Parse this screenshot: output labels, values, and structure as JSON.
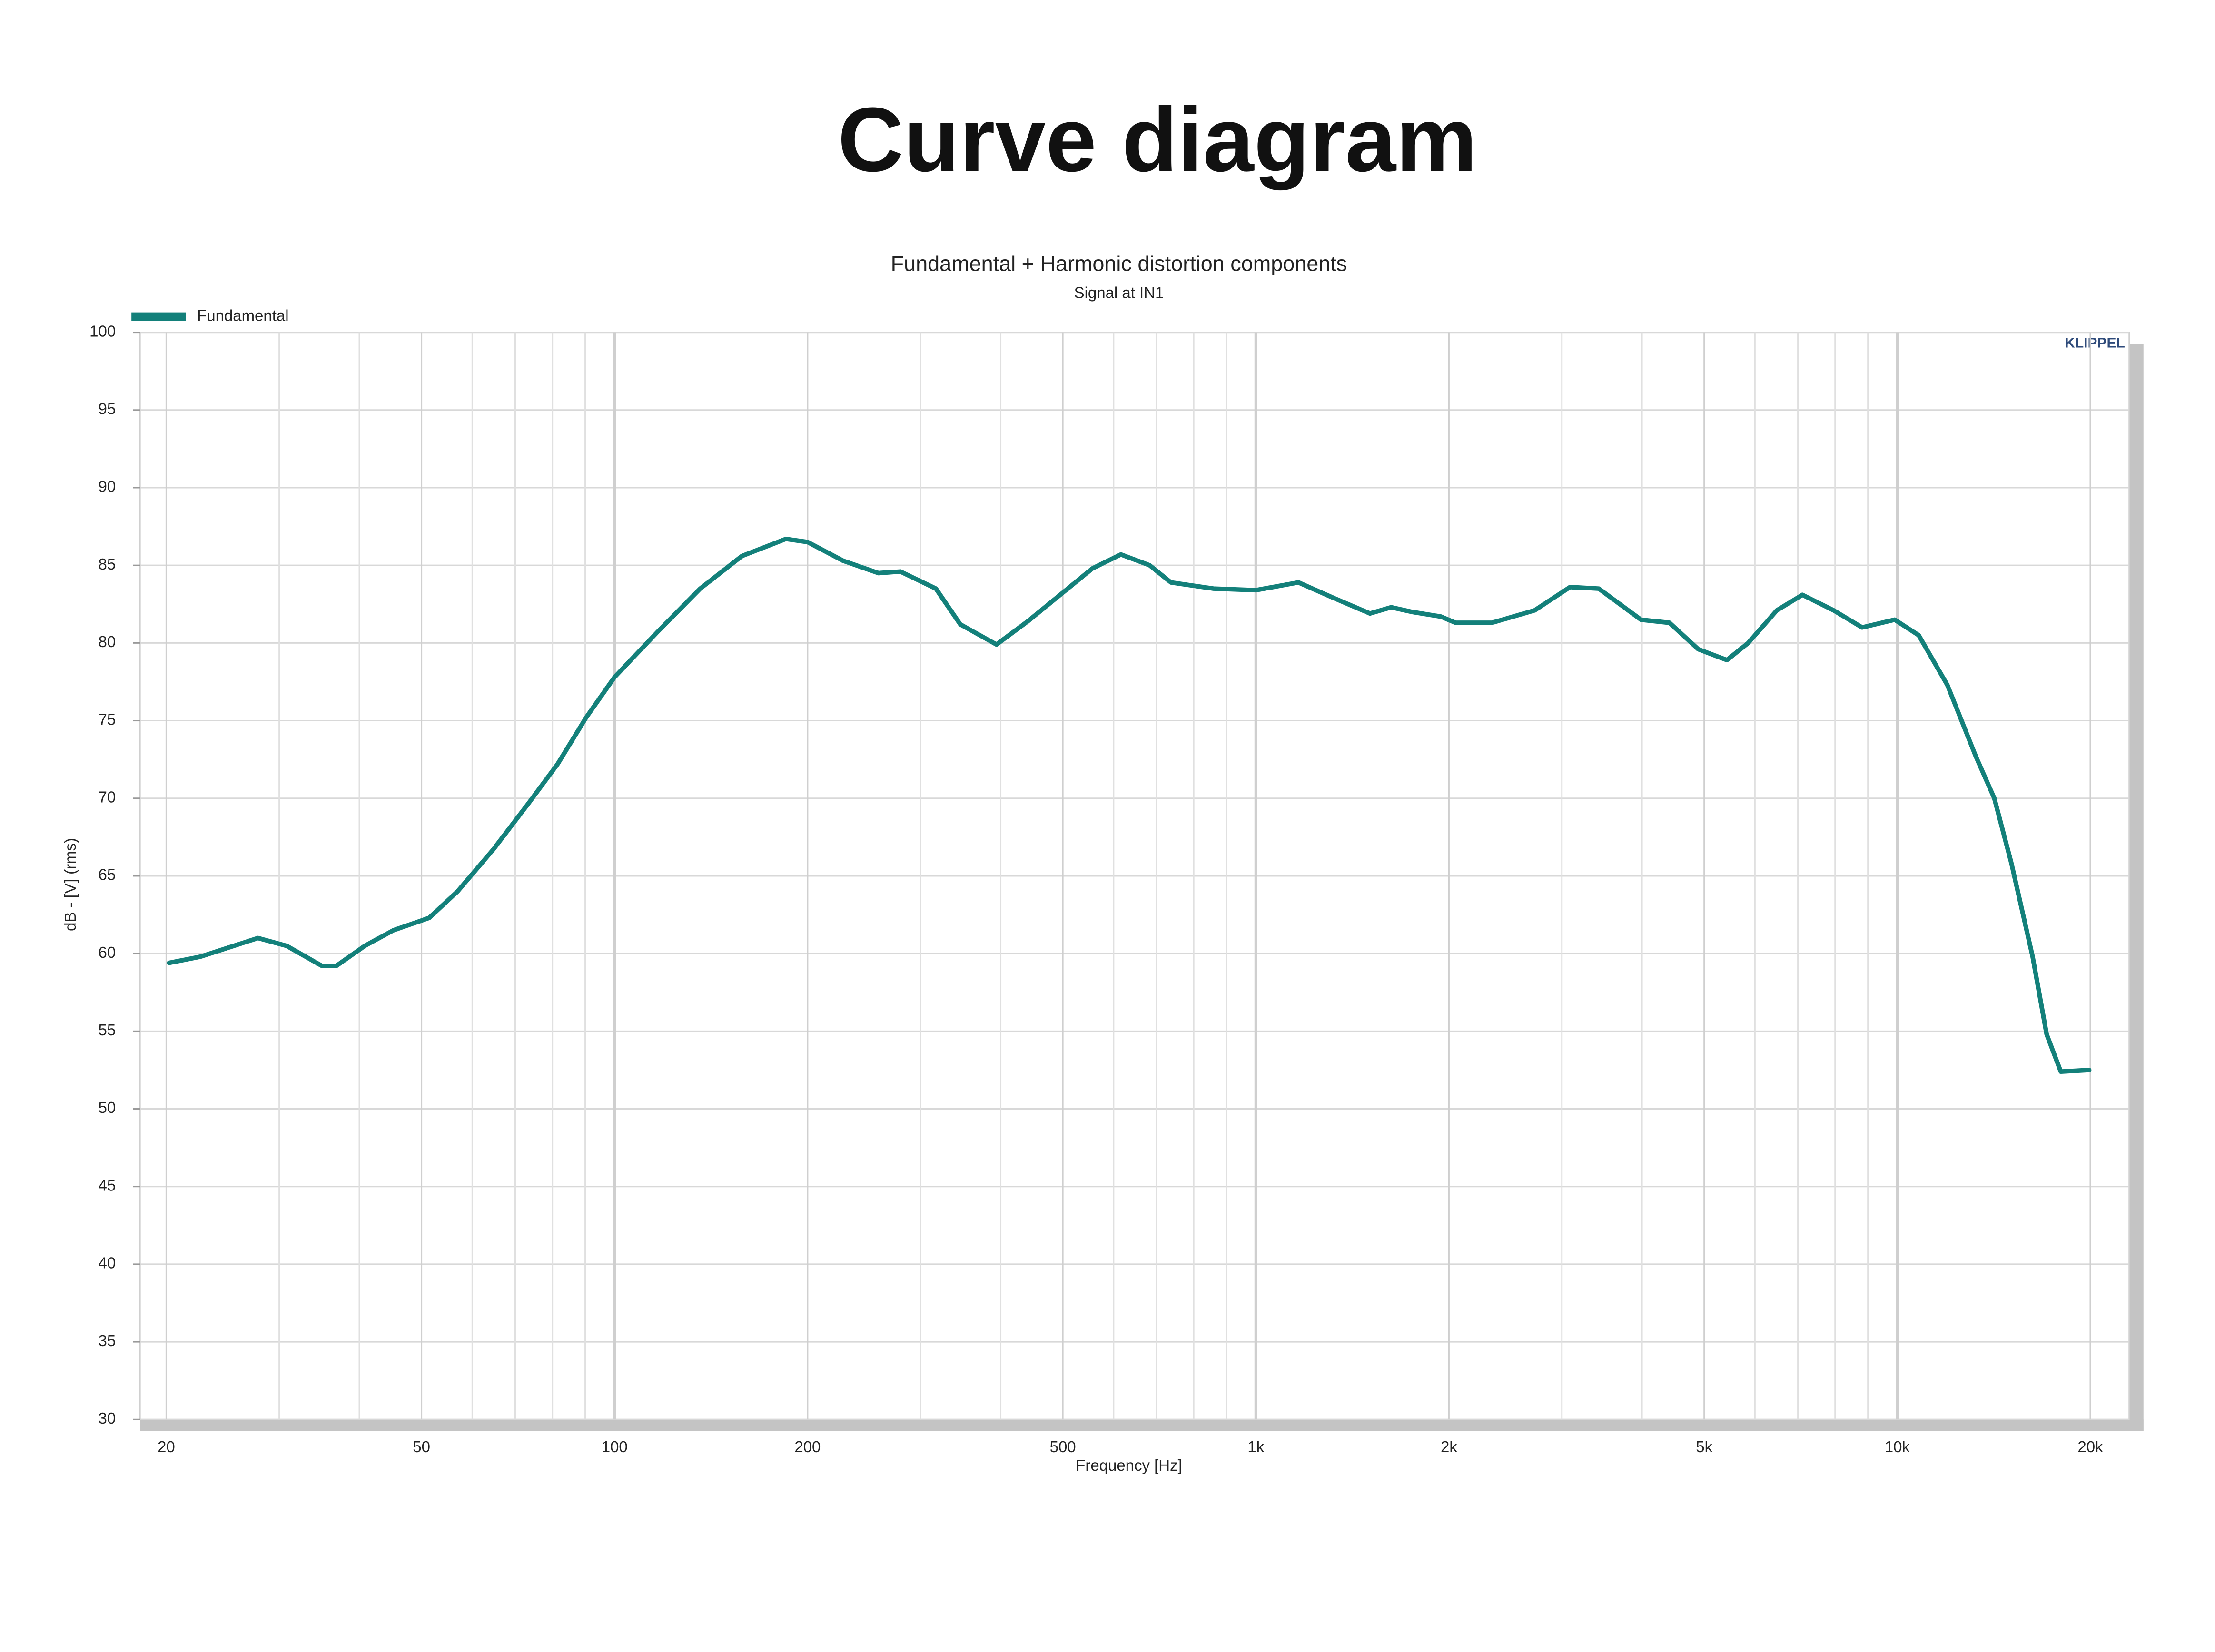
{
  "chart_data": {
    "type": "line",
    "header": "Curve diagram",
    "title": "Fundamental + Harmonic distortion components",
    "subtitle": "Signal at IN1",
    "brand": "KLIPPEL",
    "xlabel": "Frequency [Hz]",
    "ylabel": "dB - [V] (rms)",
    "xscale": "log",
    "grid": true,
    "legend": "top-left",
    "xlim": [
      18.2,
      23000
    ],
    "ylim": [
      30,
      100
    ],
    "xticks": [
      20,
      50,
      100,
      200,
      500,
      {
        "value": 1000,
        "label": "1k"
      },
      {
        "value": 2000,
        "label": "2k"
      },
      {
        "value": 5000,
        "label": "5k"
      },
      {
        "value": 10000,
        "label": "10k"
      },
      {
        "value": 20000,
        "label": "20k"
      }
    ],
    "minor_xticks": [
      30,
      40,
      60,
      70,
      80,
      90,
      300,
      400,
      600,
      700,
      800,
      900,
      3000,
      4000,
      6000,
      7000,
      8000,
      9000
    ],
    "yticks": [
      30,
      35,
      40,
      45,
      50,
      55,
      60,
      65,
      70,
      75,
      80,
      85,
      90,
      95,
      100
    ],
    "x": [
      20.2,
      22.6,
      27.8,
      30.8,
      35.0,
      36.8,
      40.8,
      45.2,
      51.4,
      56.9,
      64.7,
      73.5,
      81.5,
      90.3,
      100,
      116.6,
      136,
      158,
      185,
      200,
      227,
      258,
      279,
      317,
      346,
      394,
      441,
      502,
      556,
      616,
      683,
      737,
      859,
      1000,
      1165,
      1322,
      1506,
      1625,
      1752,
      1943,
      2048,
      2333,
      2720,
      3089,
      3425,
      3985,
      4415,
      4895,
      5425,
      5856,
      6490,
      7114,
      7960,
      8815,
      9910,
      10800,
      11970,
      13260,
      14170,
      15070,
      16260,
      17100,
      17990,
      19920
    ],
    "series": [
      {
        "name": "Fundamental",
        "color": "#13807a",
        "values": [
          59.4,
          59.8,
          61.0,
          60.5,
          59.2,
          59.2,
          60.5,
          61.5,
          62.3,
          64.0,
          66.7,
          69.7,
          72.2,
          75.2,
          77.8,
          80.7,
          83.5,
          85.6,
          86.7,
          86.5,
          85.3,
          84.5,
          84.6,
          83.5,
          81.2,
          79.9,
          81.4,
          83.3,
          84.8,
          85.7,
          85.0,
          83.9,
          83.5,
          83.4,
          83.9,
          82.9,
          81.9,
          82.3,
          82.0,
          81.7,
          81.3,
          81.3,
          82.1,
          83.6,
          83.5,
          81.5,
          81.3,
          79.6,
          78.9,
          80.0,
          82.1,
          83.1,
          82.1,
          81.0,
          81.5,
          80.5,
          77.3,
          72.7,
          70.0,
          65.8,
          59.8,
          54.8,
          52.4,
          52.5
        ]
      }
    ]
  }
}
